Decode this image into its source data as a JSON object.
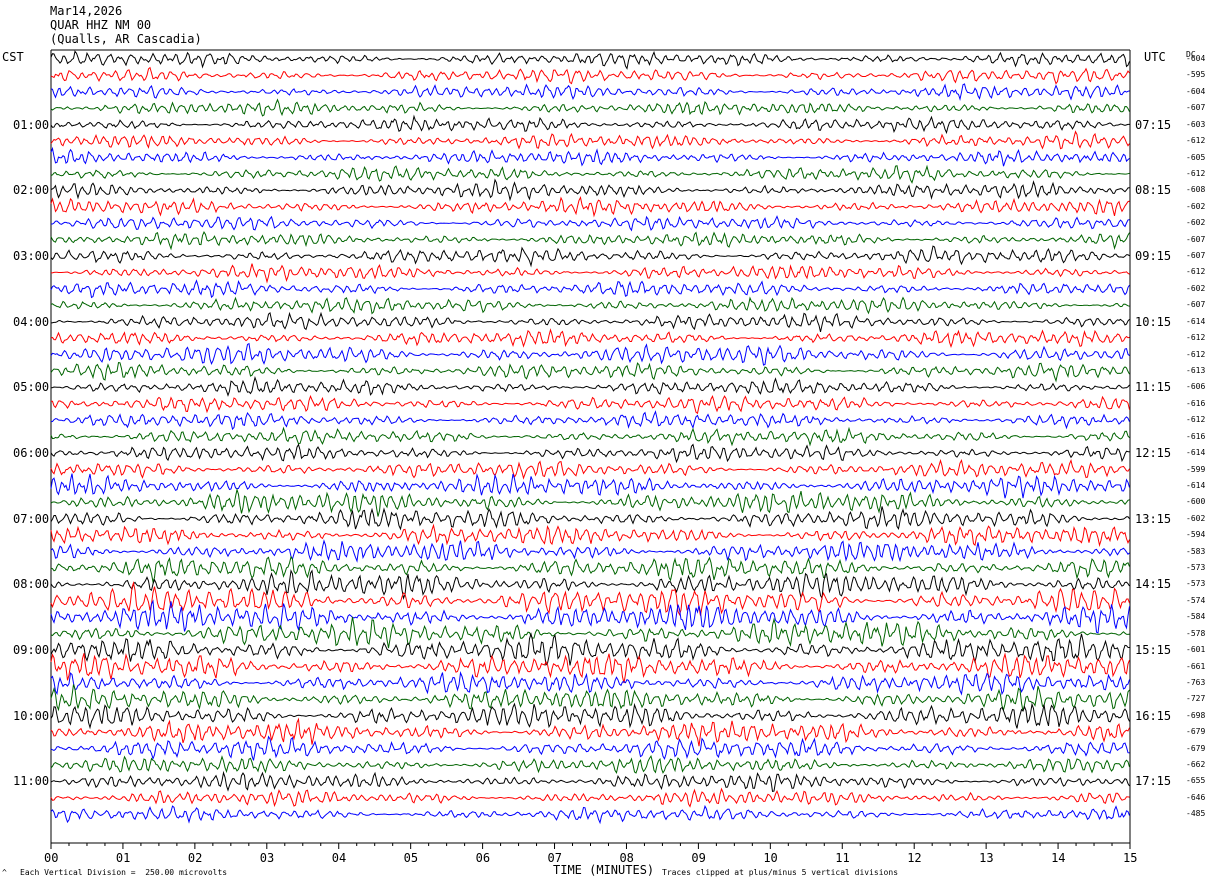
{
  "header": {
    "date": "Mar14,2026",
    "station": "QUAR HHZ NM 00",
    "location": "(Qualls, AR Cascadia)"
  },
  "left_tz": "CST",
  "right_tz": "UTC",
  "dc_label": "DC",
  "footer": {
    "scale": "Each Vertical Division =  250.00 microvolts",
    "xlabel": "TIME (MINUTES)",
    "clip": "Traces clipped at plus/minus 5 vertical divisions",
    "corner": "^"
  },
  "trace_colors": [
    "#000000",
    "#ff0000",
    "#0000ff",
    "#006400"
  ],
  "chart_data": {
    "type": "line",
    "xlabel": "TIME (MINUTES)",
    "xlim": [
      0,
      15
    ],
    "x_ticks": [
      "00",
      "01",
      "02",
      "03",
      "04",
      "05",
      "06",
      "07",
      "08",
      "09",
      "10",
      "11",
      "12",
      "13",
      "14",
      "15"
    ],
    "left_hour_labels": [
      "01:00",
      "02:00",
      "03:00",
      "04:00",
      "05:00",
      "06:00",
      "07:00",
      "08:00",
      "09:00",
      "10:00",
      "11:00"
    ],
    "right_hour_labels": [
      "07:15",
      "08:15",
      "09:15",
      "10:15",
      "11:15",
      "12:15",
      "13:15",
      "14:15",
      "15:15",
      "16:15",
      "17:15"
    ],
    "dc_offsets": [
      "-604",
      "-595",
      "-604",
      "-607",
      "-603",
      "-612",
      "-605",
      "-612",
      "-608",
      "-602",
      "-602",
      "-607",
      "-607",
      "-612",
      "-602",
      "-607",
      "-614",
      "-612",
      "-612",
      "-613",
      "-606",
      "-616",
      "-612",
      "-616",
      "-614",
      "-599",
      "-614",
      "-600",
      "-602",
      "-594",
      "-583",
      "-573",
      "-573",
      "-574",
      "-584",
      "-578",
      "-601",
      "-661",
      "-763",
      "-727",
      "-698",
      "-679",
      "-679",
      "-662",
      "-655",
      "-646",
      "-485"
    ],
    "trace_amplitude_relative": [
      1.0,
      1.0,
      1.0,
      1.0,
      1.0,
      1.0,
      1.0,
      1.0,
      1.1,
      1.1,
      1.0,
      1.0,
      1.1,
      1.1,
      1.1,
      1.1,
      1.1,
      1.1,
      1.4,
      1.1,
      1.1,
      1.1,
      1.1,
      1.1,
      1.1,
      1.2,
      1.4,
      1.6,
      1.5,
      1.4,
      1.5,
      1.6,
      1.8,
      2.0,
      2.0,
      1.8,
      1.9,
      1.8,
      1.5,
      1.6,
      1.7,
      1.6,
      1.4,
      1.2,
      1.2,
      1.1,
      1.0
    ]
  }
}
